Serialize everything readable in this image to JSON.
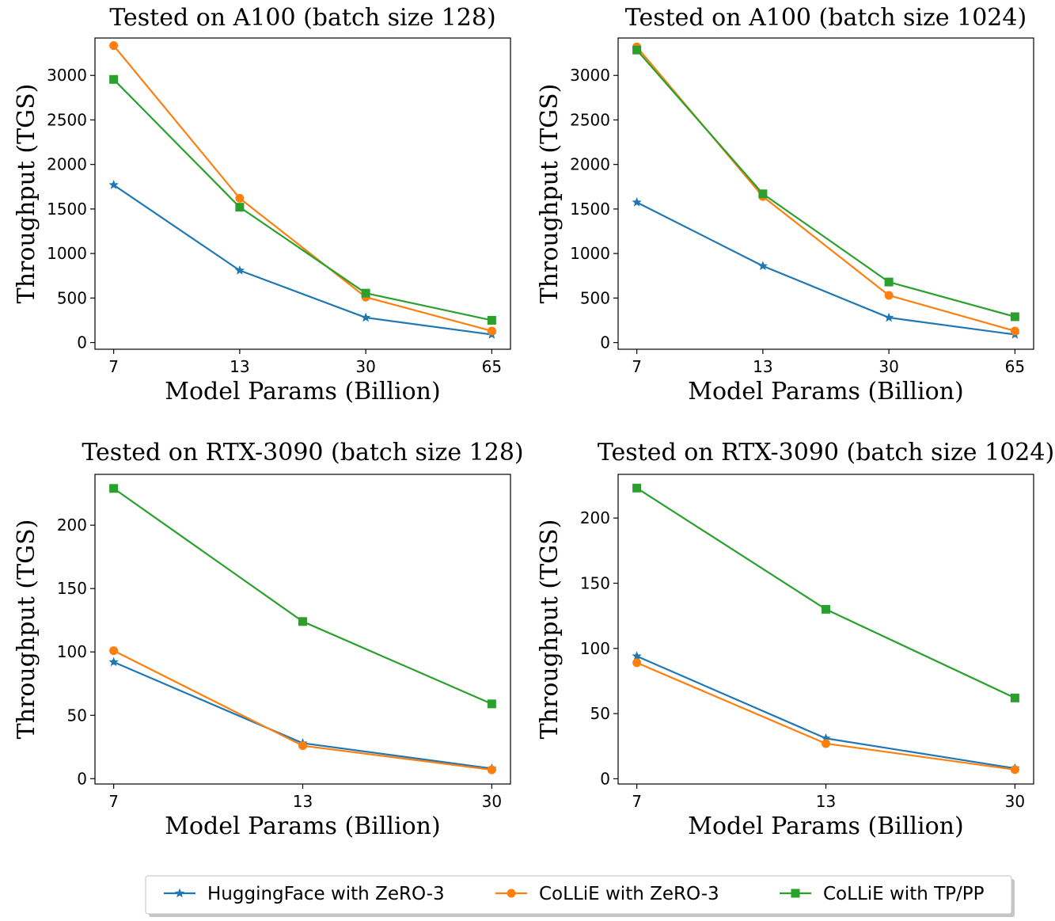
{
  "legend": {
    "items": [
      {
        "label": "HuggingFace with ZeRO-3",
        "color": "#1f77b4",
        "marker": "star"
      },
      {
        "label": "CoLLiE with ZeRO-3",
        "color": "#ff7f0e",
        "marker": "circle"
      },
      {
        "label": "CoLLiE with TP/PP",
        "color": "#2ca02c",
        "marker": "square"
      }
    ],
    "placement": "bottom-center"
  },
  "chart_data": [
    {
      "type": "line",
      "title": "Tested on A100 (batch size 128)",
      "xlabel": "Model Params (Billion)",
      "ylabel": "Throughput (TGS)",
      "categories": [
        "7",
        "13",
        "30",
        "65"
      ],
      "yticks": [
        0,
        500,
        1000,
        1500,
        2000,
        2500,
        3000
      ],
      "ylim": [
        -75,
        3420
      ],
      "series": [
        {
          "name": "HuggingFace with ZeRO-3",
          "values": [
            1770,
            810,
            280,
            90
          ]
        },
        {
          "name": "CoLLiE with ZeRO-3",
          "values": [
            3335,
            1620,
            510,
            130
          ]
        },
        {
          "name": "CoLLiE with TP/PP",
          "values": [
            2955,
            1520,
            555,
            250
          ]
        }
      ]
    },
    {
      "type": "line",
      "title": "Tested on A100 (batch size 1024)",
      "xlabel": "Model Params (Billion)",
      "ylabel": "Throughput (TGS)",
      "categories": [
        "7",
        "13",
        "30",
        "65"
      ],
      "yticks": [
        0,
        500,
        1000,
        1500,
        2000,
        2500,
        3000
      ],
      "ylim": [
        -75,
        3420
      ],
      "series": [
        {
          "name": "HuggingFace with ZeRO-3",
          "values": [
            1575,
            860,
            280,
            90
          ]
        },
        {
          "name": "CoLLiE with ZeRO-3",
          "values": [
            3320,
            1640,
            530,
            130
          ]
        },
        {
          "name": "CoLLiE with TP/PP",
          "values": [
            3285,
            1670,
            680,
            290
          ]
        }
      ]
    },
    {
      "type": "line",
      "title": "Tested on RTX-3090 (batch size 128)",
      "xlabel": "Model Params (Billion)",
      "ylabel": "Throughput (TGS)",
      "categories": [
        "7",
        "13",
        "30"
      ],
      "yticks": [
        0,
        50,
        100,
        150,
        200
      ],
      "ylim": [
        -4.2,
        240.1
      ],
      "series": [
        {
          "name": "HuggingFace with ZeRO-3",
          "values": [
            92,
            28,
            8
          ]
        },
        {
          "name": "CoLLiE with ZeRO-3",
          "values": [
            101,
            26,
            7
          ]
        },
        {
          "name": "CoLLiE with TP/PP",
          "values": [
            229,
            124,
            59
          ]
        }
      ]
    },
    {
      "type": "line",
      "title": "Tested on RTX-3090 (batch size 1024)",
      "xlabel": "Model Params (Billion)",
      "ylabel": "Throughput (TGS)",
      "categories": [
        "7",
        "13",
        "30"
      ],
      "yticks": [
        0,
        50,
        100,
        150,
        200
      ],
      "ylim": [
        -4,
        233.5
      ],
      "series": [
        {
          "name": "HuggingFace with ZeRO-3",
          "values": [
            94,
            31,
            8
          ]
        },
        {
          "name": "CoLLiE with ZeRO-3",
          "values": [
            89,
            27,
            7
          ]
        },
        {
          "name": "CoLLiE with TP/PP",
          "values": [
            223,
            130,
            62
          ]
        }
      ]
    }
  ]
}
